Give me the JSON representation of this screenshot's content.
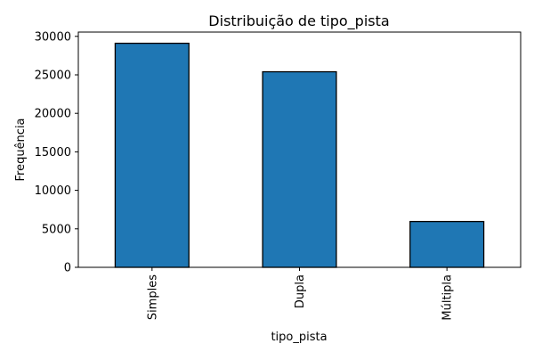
{
  "chart_data": {
    "type": "bar",
    "title": "Distribuição de tipo_pista",
    "xlabel": "tipo_pista",
    "ylabel": "Frequência",
    "categories": [
      "Simples",
      "Dupla",
      "Múltipla"
    ],
    "values": [
      29100,
      25400,
      5950
    ],
    "ylim": [
      0,
      30555
    ],
    "yticks": [
      0,
      5000,
      10000,
      15000,
      20000,
      25000,
      30000
    ],
    "grid": false,
    "legend": "none",
    "bar_color": "#1f77b4",
    "bar_edge_color": "#000000"
  }
}
